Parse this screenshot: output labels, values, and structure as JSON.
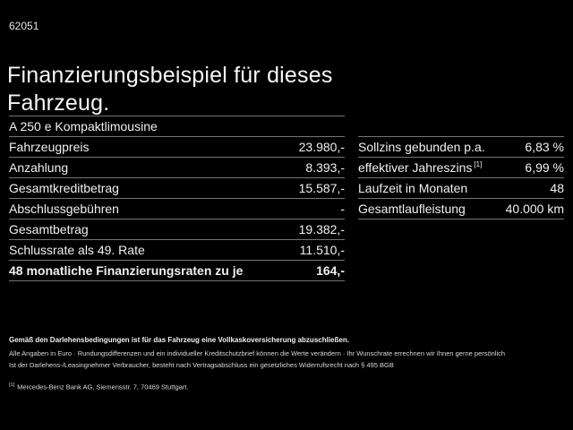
{
  "page": {
    "code": "62051",
    "title_line1": "Finanzierungsbeispiel für dieses",
    "title_line2": "Fahrzeug.",
    "model": "A 250 e Kompaktlimousine"
  },
  "finance_table": {
    "rows": [
      {
        "label": "Fahrzeugpreis",
        "value": "23.980,-"
      },
      {
        "label": "Anzahlung",
        "value": "8.393,-"
      },
      {
        "label": "Gesamtkreditbetrag",
        "value": "15.587,-"
      },
      {
        "label": "Abschlussgebühren",
        "value": "-"
      },
      {
        "label": "Gesamtbetrag",
        "value": "19.382,-"
      },
      {
        "label": "Schlussrate als 49. Rate",
        "value": "11.510,-"
      },
      {
        "label": "48 monatliche Finanzierungsraten zu je",
        "value": "164,-"
      }
    ]
  },
  "conditions_table": {
    "rows": [
      {
        "label": "Sollzins gebunden p.a.",
        "value": "6,83 %"
      },
      {
        "label": "effektiver Jahreszins",
        "sup": "[1]",
        "value": "6,99 %"
      },
      {
        "label": "Laufzeit in Monaten",
        "value": "48"
      },
      {
        "label": "Gesamtlaufleistung",
        "value": "40.000 km"
      }
    ]
  },
  "footer": {
    "bold_note": "Gemäß den Darlehensbedingungen ist für das Fahrzeug eine Vollkaskoversicherung abzuschließen.",
    "note_line1": "Alle Angaben in Euro · Rundungsdifferenzen und ein individueller Kreditschutzbrief können die Werte verändern · Ihr Wunschrate errechnen wir Ihnen gerne persönlich",
    "note_line2": "Ist der Darlehens-/Leasingnehmer Verbraucher, besteht nach Vertragsabschluss ein gesetzliches Widerrufsrecht nach § 495 BGB",
    "footnote_marker": "[1]",
    "footnote_text": "Mercedes-Benz Bank AG, Siemensstr. 7, 70469 Stuttgart."
  },
  "colors": {
    "background": "#000000",
    "text": "#f0f0f0",
    "separator": "#757575"
  }
}
